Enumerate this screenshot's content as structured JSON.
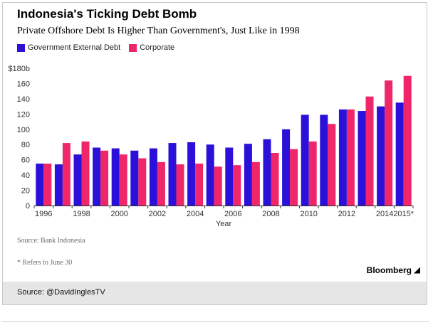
{
  "header": {
    "title": "Indonesia's Ticking Debt Bomb",
    "subtitle": "Private Offshore Debt Is Higher Than Government's, Just Like in 1998"
  },
  "notes": {
    "source_line": "Source: Bank Indonesia",
    "footnote": "* Refers to June 30"
  },
  "branding": {
    "logo_text": "Bloomberg"
  },
  "footer": {
    "text": "Source: @DavidInglesTV"
  },
  "colors": {
    "government": "#2b10d9",
    "corporate": "#f0266b",
    "axis": "#333333"
  },
  "chart_data": {
    "type": "bar",
    "title": "Indonesia's Ticking Debt Bomb",
    "subtitle": "Private Offshore Debt Is Higher Than Government's, Just Like in 1998",
    "xlabel": "Year",
    "ylabel": "",
    "ylim": [
      0,
      180
    ],
    "yticks": [
      0,
      20,
      40,
      60,
      80,
      100,
      120,
      140,
      160,
      180
    ],
    "ytick_labels": [
      "0",
      "20",
      "40",
      "60",
      "80",
      "100",
      "120",
      "140",
      "160",
      "$180b"
    ],
    "categories": [
      "1996",
      "1997",
      "1998",
      "1999",
      "2000",
      "2001",
      "2002",
      "2003",
      "2004",
      "2005",
      "2006",
      "2007",
      "2008",
      "2009",
      "2010",
      "2011",
      "2012",
      "2013",
      "2014",
      "2015*"
    ],
    "xtick_labels": [
      "1996",
      "1998",
      "2000",
      "2002",
      "2004",
      "2006",
      "2008",
      "2010",
      "2012",
      "2014",
      "2015*"
    ],
    "legend_placement": "top-left",
    "grid": false,
    "series": [
      {
        "name": "Government External Debt",
        "color": "#2b10d9",
        "values": [
          55,
          54,
          67,
          76,
          75,
          72,
          75,
          82,
          83,
          80,
          76,
          81,
          87,
          100,
          119,
          119,
          126,
          124,
          130,
          135
        ]
      },
      {
        "name": "Corporate",
        "color": "#f0266b",
        "values": [
          55,
          82,
          84,
          72,
          67,
          62,
          57,
          54,
          55,
          51,
          53,
          57,
          69,
          74,
          84,
          107,
          126,
          143,
          164,
          170
        ]
      }
    ]
  }
}
